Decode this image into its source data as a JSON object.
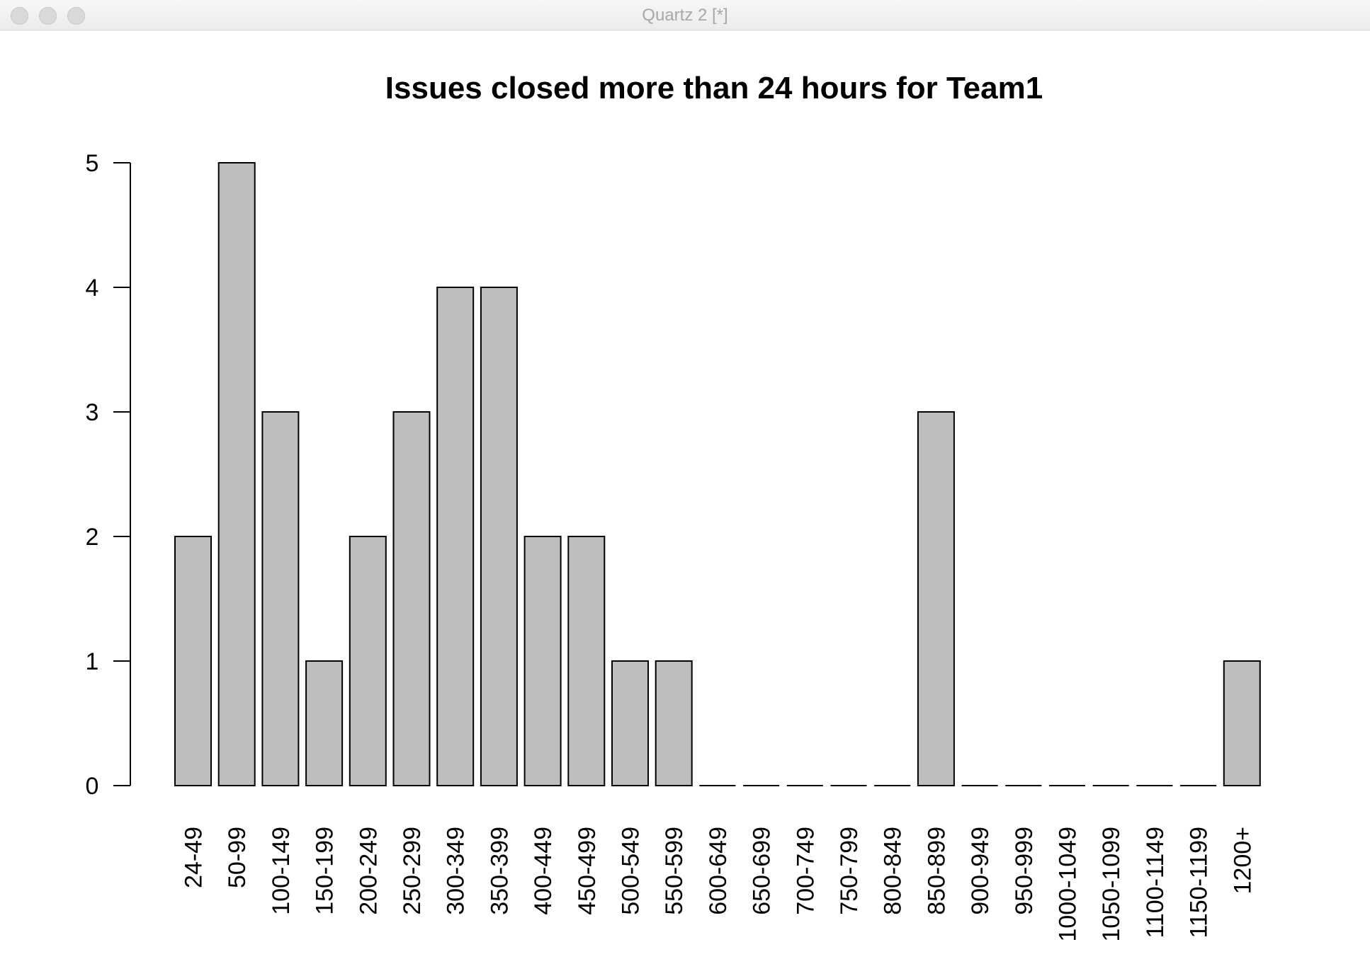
{
  "window": {
    "title": "Quartz 2 [*]"
  },
  "colors": {
    "bar_fill": "#bebebe",
    "bar_stroke": "#000000",
    "axis": "#000000",
    "background": "#ffffff"
  },
  "chart_data": {
    "type": "bar",
    "title": "Issues closed more than 24 hours for Team1",
    "xlabel": "",
    "ylabel": "",
    "categories": [
      "24-49",
      "50-99",
      "100-149",
      "150-199",
      "200-249",
      "250-299",
      "300-349",
      "350-399",
      "400-449",
      "450-499",
      "500-549",
      "550-599",
      "600-649",
      "650-699",
      "700-749",
      "750-799",
      "800-849",
      "850-899",
      "900-949",
      "950-999",
      "1000-1049",
      "1050-1099",
      "1100-1149",
      "1150-1199",
      "1200+"
    ],
    "values": [
      2,
      5,
      3,
      1,
      2,
      3,
      4,
      4,
      2,
      2,
      1,
      1,
      0,
      0,
      0,
      0,
      0,
      3,
      0,
      0,
      0,
      0,
      0,
      0,
      1
    ],
    "ylim": [
      0,
      5
    ],
    "yticks": [
      "0",
      "1",
      "2",
      "3",
      "4",
      "5"
    ],
    "grid": false,
    "legend": "none"
  }
}
